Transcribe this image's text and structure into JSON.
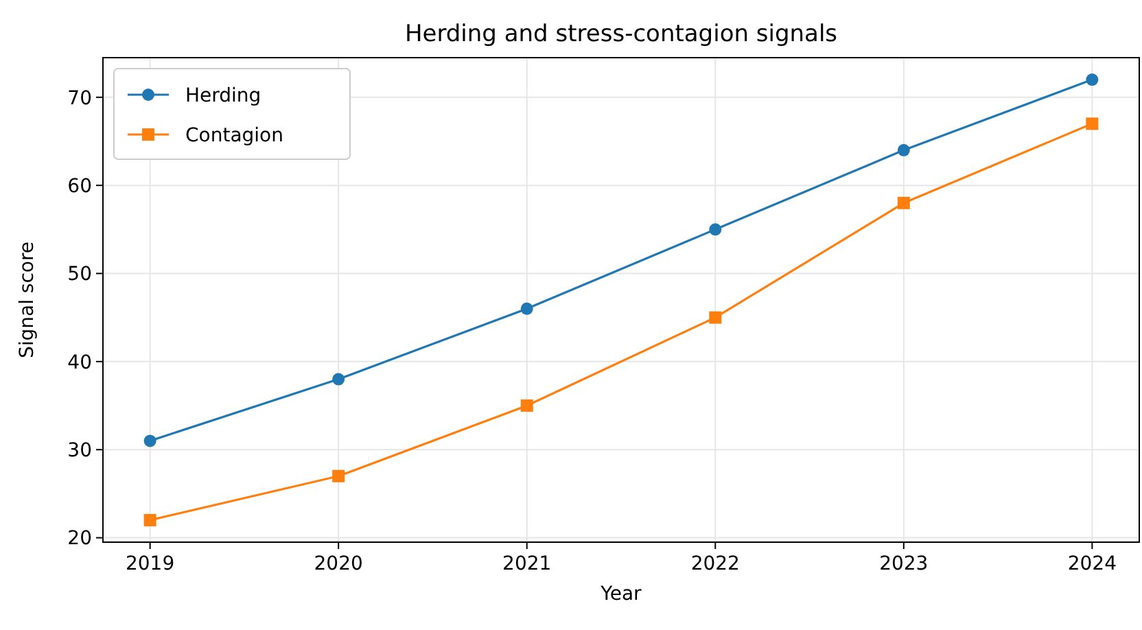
{
  "chart_data": {
    "type": "line",
    "title": "Herding and stress-contagion signals",
    "xlabel": "Year",
    "ylabel": "Signal score",
    "x": [
      2019,
      2020,
      2021,
      2022,
      2023,
      2024
    ],
    "series": [
      {
        "name": "Herding",
        "color": "#1f77b4",
        "marker": "circle",
        "values": [
          31,
          38,
          46,
          55,
          64,
          72
        ]
      },
      {
        "name": "Contagion",
        "color": "#ff7f0e",
        "marker": "square",
        "values": [
          22,
          27,
          35,
          45,
          58,
          67
        ]
      }
    ],
    "xlim": [
      2018.75,
      2024.25
    ],
    "xticks": [
      2019,
      2020,
      2021,
      2022,
      2023,
      2024
    ],
    "ylim": [
      19.5,
      74.5
    ],
    "yticks": [
      20,
      30,
      40,
      50,
      60,
      70
    ],
    "grid": true,
    "legend": "top left",
    "line_style": "solid"
  }
}
